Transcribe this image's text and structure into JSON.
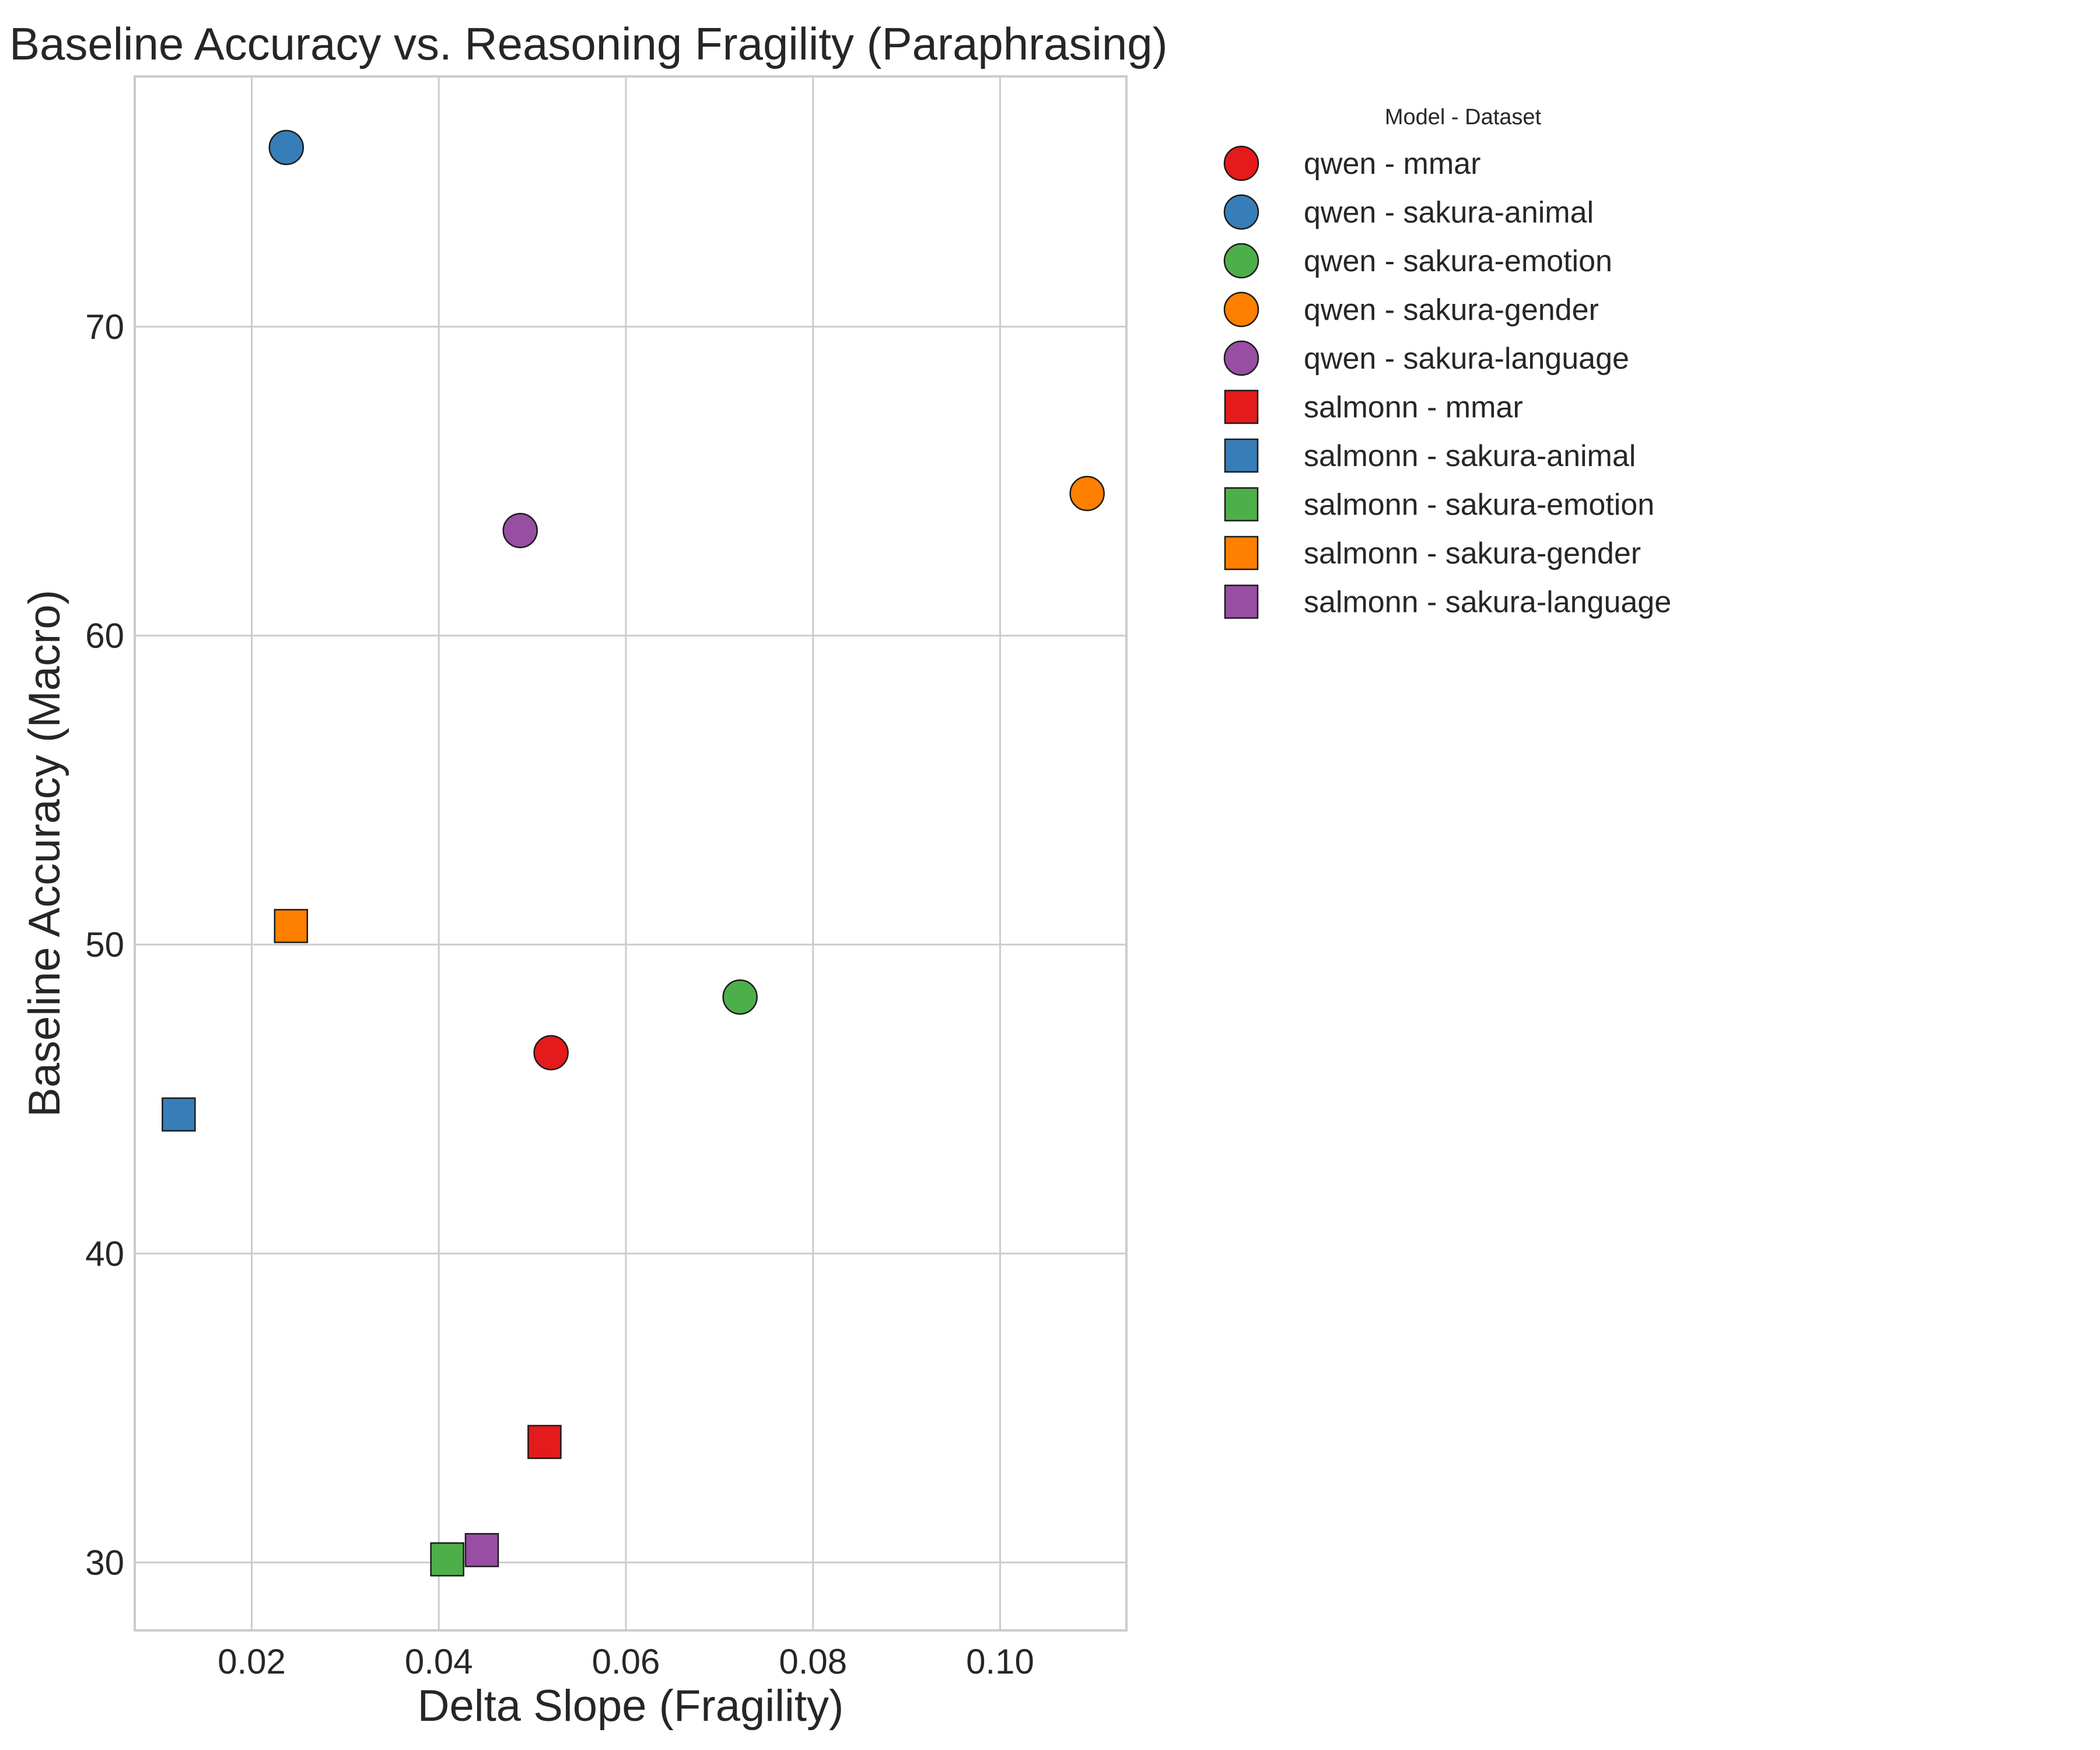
{
  "chart_data": {
    "type": "scatter",
    "title": "Baseline Accuracy vs. Reasoning Fragility (Paraphrasing)",
    "xlabel": "Delta Slope (Fragility)",
    "ylabel": "Baseline Accuracy (Macro)",
    "xlim": [
      0.0075,
      0.1135
    ],
    "ylim": [
      27.8,
      78.1
    ],
    "xticks": [
      0.02,
      0.04,
      0.06,
      0.08,
      0.1
    ],
    "xtick_labels": [
      "0.02",
      "0.04",
      "0.06",
      "0.08",
      "0.10"
    ],
    "yticks": [
      30,
      40,
      50,
      60,
      70
    ],
    "ytick_labels": [
      "30",
      "40",
      "50",
      "60",
      "70"
    ],
    "grid": true,
    "legend": {
      "title": "Model - Dataset",
      "placement": "outside-right-top"
    },
    "series": [
      {
        "name": "qwen - mmar",
        "model": "qwen",
        "color": "#e41a1c",
        "marker": "circle",
        "x": 0.052,
        "y": 46.5
      },
      {
        "name": "qwen - sakura-animal",
        "model": "qwen",
        "color": "#377eb8",
        "marker": "circle",
        "x": 0.0237,
        "y": 75.8
      },
      {
        "name": "qwen - sakura-emotion",
        "model": "qwen",
        "color": "#4daf4a",
        "marker": "circle",
        "x": 0.0722,
        "y": 48.3
      },
      {
        "name": "qwen - sakura-gender",
        "model": "qwen",
        "color": "#ff7f00",
        "marker": "circle",
        "x": 0.1093,
        "y": 64.6
      },
      {
        "name": "qwen - sakura-language",
        "model": "qwen",
        "color": "#984ea3",
        "marker": "circle",
        "x": 0.0487,
        "y": 63.4
      },
      {
        "name": "salmonn - mmar",
        "model": "salmonn",
        "color": "#e41a1c",
        "marker": "square",
        "x": 0.0513,
        "y": 33.9
      },
      {
        "name": "salmonn - sakura-animal",
        "model": "salmonn",
        "color": "#377eb8",
        "marker": "square",
        "x": 0.0122,
        "y": 44.5
      },
      {
        "name": "salmonn - sakura-emotion",
        "model": "salmonn",
        "color": "#4daf4a",
        "marker": "square",
        "x": 0.0409,
        "y": 30.1
      },
      {
        "name": "salmonn - sakura-gender",
        "model": "salmonn",
        "color": "#ff7f00",
        "marker": "square",
        "x": 0.0242,
        "y": 50.6
      },
      {
        "name": "salmonn - sakura-language",
        "model": "salmonn",
        "color": "#984ea3",
        "marker": "square",
        "x": 0.0446,
        "y": 30.4
      }
    ]
  }
}
